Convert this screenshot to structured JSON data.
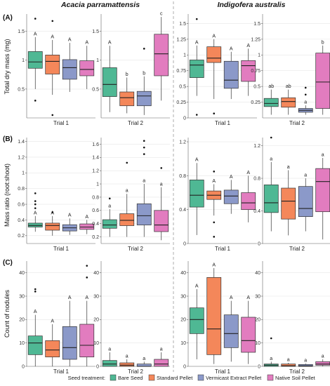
{
  "figure": {
    "species": [
      "Acacia parramattensis",
      "Indigofera australis"
    ],
    "trials": [
      "Trial 1",
      "Trial 2"
    ],
    "legend_title": "Seed treatment:",
    "treatments": [
      {
        "name": "Bare Seed",
        "color": "#4fb894"
      },
      {
        "name": "Standard Pellet",
        "color": "#f4875a"
      },
      {
        "name": "Vermicast Extract Pellet",
        "color": "#8b99c9"
      },
      {
        "name": "Native Soil Pellet",
        "color": "#e27cbf"
      }
    ]
  },
  "chart_data": [
    {
      "type": "box",
      "panel": "(A)",
      "species": "Acacia parramattensis",
      "trial": "Trial 1",
      "ylabel": "Total dry mass (mg)",
      "ylim": [
        0,
        1.8
      ],
      "ticks": [
        0.5,
        1.0,
        1.5
      ],
      "boxes": [
        {
          "treatment": "Bare Seed",
          "min": 0.5,
          "q1": 0.86,
          "median": 0.97,
          "q3": 1.15,
          "max": 1.4,
          "outliers": [
            1.72,
            0.3
          ],
          "letter": "A"
        },
        {
          "treatment": "Standard Pellet",
          "min": 0.4,
          "q1": 0.76,
          "median": 0.98,
          "q3": 1.09,
          "max": 1.35,
          "outliers": [
            1.68,
            0.05
          ],
          "letter": "A"
        },
        {
          "treatment": "Vermicast Extract Pellet",
          "min": 0.45,
          "q1": 0.67,
          "median": 0.87,
          "q3": 1.01,
          "max": 1.3,
          "outliers": [],
          "letter": "A"
        },
        {
          "treatment": "Native Soil Pellet",
          "min": 0.5,
          "q1": 0.73,
          "median": 0.84,
          "q3": 0.99,
          "max": 1.25,
          "outliers": [],
          "letter": "A"
        }
      ]
    },
    {
      "type": "box",
      "panel": "(A)",
      "species": "Acacia parramattensis",
      "trial": "Trial 2",
      "ylim": [
        0,
        1.8
      ],
      "ticks": [
        0.5,
        1.0,
        1.5
      ],
      "boxes": [
        {
          "treatment": "Bare Seed",
          "min": 0.1,
          "q1": 0.37,
          "median": 0.58,
          "q3": 0.87,
          "max": 1.25,
          "outliers": [],
          "letter": "A"
        },
        {
          "treatment": "Standard Pellet",
          "min": 0.08,
          "q1": 0.21,
          "median": 0.35,
          "q3": 0.45,
          "max": 0.7,
          "outliers": [],
          "letter": "b"
        },
        {
          "treatment": "Vermicast Extract Pellet",
          "min": 0.05,
          "q1": 0.21,
          "median": 0.38,
          "q3": 0.46,
          "max": 0.72,
          "outliers": [
            1.2
          ],
          "letter": "b"
        },
        {
          "treatment": "Native Soil Pellet",
          "min": 0.3,
          "q1": 0.73,
          "median": 1.11,
          "q3": 1.45,
          "max": 1.75,
          "outliers": [],
          "letter": "c"
        }
      ]
    },
    {
      "type": "box",
      "panel": "(A)",
      "species": "Indigofera australis",
      "trial": "Trial 1",
      "ylim": [
        0,
        1.65
      ],
      "ticks": [
        0.0,
        0.25,
        0.5,
        0.75,
        1.0,
        1.25,
        1.5
      ],
      "boxes": [
        {
          "treatment": "Bare Seed",
          "min": 0.35,
          "q1": 0.64,
          "median": 0.84,
          "q3": 0.92,
          "max": 1.15,
          "outliers": [
            1.57,
            0.05
          ],
          "letter": "A"
        },
        {
          "treatment": "Standard Pellet",
          "min": 0.3,
          "q1": 0.88,
          "median": 0.95,
          "q3": 1.13,
          "max": 1.25,
          "outliers": [
            0.07
          ],
          "letter": "A"
        },
        {
          "treatment": "Vermicast Extract Pellet",
          "min": 0.3,
          "q1": 0.47,
          "median": 0.6,
          "q3": 0.9,
          "max": 1.05,
          "outliers": [],
          "letter": "A"
        },
        {
          "treatment": "Native Soil Pellet",
          "min": 0.35,
          "q1": 0.58,
          "median": 0.83,
          "q3": 0.91,
          "max": 1.1,
          "outliers": [],
          "letter": "A"
        }
      ]
    },
    {
      "type": "box",
      "panel": "(A)",
      "species": "Indigofera australis",
      "trial": "Trial 2",
      "ylim": [
        0,
        1.65
      ],
      "ticks": [
        0.25,
        0.5,
        0.75,
        1.0,
        1.25,
        1.5
      ],
      "boxes": [
        {
          "treatment": "Bare Seed",
          "min": 0.05,
          "q1": 0.18,
          "median": 0.23,
          "q3": 0.31,
          "max": 0.45,
          "outliers": [],
          "letter": "ab"
        },
        {
          "treatment": "Standard Pellet",
          "min": 0.05,
          "q1": 0.17,
          "median": 0.26,
          "q3": 0.32,
          "max": 0.45,
          "outliers": [],
          "letter": "ab"
        },
        {
          "treatment": "Vermicast Extract Pellet",
          "min": 0.05,
          "q1": 0.09,
          "median": 0.12,
          "q3": 0.15,
          "max": 0.2,
          "outliers": [
            0.48,
            0.37
          ],
          "letter": "a"
        },
        {
          "treatment": "Native Soil Pellet",
          "min": 0.05,
          "q1": 0.15,
          "median": 0.57,
          "q3": 1.03,
          "max": 1.15,
          "outliers": [],
          "letter": "b"
        }
      ]
    },
    {
      "type": "box",
      "panel": "(B)",
      "species": "Acacia parramattensis",
      "trial": "Trial 1",
      "ylabel": "Mass ratio (root:shoot)",
      "ylim": [
        0.1,
        1.45
      ],
      "ticks": [
        0.2,
        0.4,
        0.6,
        0.8,
        1.0,
        1.2,
        1.4
      ],
      "boxes": [
        {
          "treatment": "Bare Seed",
          "min": 0.25,
          "q1": 0.31,
          "median": 0.33,
          "q3": 0.36,
          "max": 0.45,
          "outliers": [
            0.74,
            0.64,
            0.6,
            0.55
          ],
          "letter": "A"
        },
        {
          "treatment": "Standard Pellet",
          "min": 0.2,
          "q1": 0.27,
          "median": 0.33,
          "q3": 0.36,
          "max": 0.45,
          "outliers": [
            0.5
          ],
          "letter": "A"
        },
        {
          "treatment": "Vermicast Extract Pellet",
          "min": 0.21,
          "q1": 0.26,
          "median": 0.3,
          "q3": 0.34,
          "max": 0.42,
          "outliers": [],
          "letter": "A"
        },
        {
          "treatment": "Native Soil Pellet",
          "min": 0.22,
          "q1": 0.28,
          "median": 0.31,
          "q3": 0.35,
          "max": 0.4,
          "outliers": [],
          "letter": "A"
        }
      ]
    },
    {
      "type": "box",
      "panel": "(B)",
      "species": "Acacia parramattensis",
      "trial": "Trial 2",
      "ylim": [
        0.1,
        1.7
      ],
      "ticks": [
        0.2,
        0.4,
        0.6,
        0.8,
        1.0,
        1.2,
        1.4,
        1.6
      ],
      "boxes": [
        {
          "treatment": "Bare Seed",
          "min": 0.2,
          "q1": 0.33,
          "median": 0.38,
          "q3": 0.46,
          "max": 0.62,
          "outliers": [
            0.78
          ],
          "letter": "a"
        },
        {
          "treatment": "Standard Pellet",
          "min": 0.2,
          "q1": 0.37,
          "median": 0.45,
          "q3": 0.55,
          "max": 0.85,
          "outliers": [
            1.32
          ],
          "letter": "a"
        },
        {
          "treatment": "Vermicast Extract Pellet",
          "min": 0.2,
          "q1": 0.38,
          "median": 0.52,
          "q3": 0.7,
          "max": 1.0,
          "outliers": [
            1.65,
            1.55,
            1.45
          ],
          "letter": "a"
        },
        {
          "treatment": "Native Soil Pellet",
          "min": 0.15,
          "q1": 0.28,
          "median": 0.38,
          "q3": 0.6,
          "max": 0.95,
          "outliers": [
            1.24
          ],
          "letter": "a"
        }
      ]
    },
    {
      "type": "box",
      "panel": "(B)",
      "species": "Indigofera australis",
      "trial": "Trial 1",
      "ylim": [
        0.0,
        1.25
      ],
      "ticks": [
        0.0,
        0.4,
        0.8,
        1.2
      ],
      "boxes": [
        {
          "treatment": "Bare Seed",
          "min": 0.1,
          "q1": 0.43,
          "median": 0.57,
          "q3": 0.75,
          "max": 0.95,
          "outliers": [],
          "letter": "A"
        },
        {
          "treatment": "Standard Pellet",
          "min": 0.33,
          "q1": 0.52,
          "median": 0.57,
          "q3": 0.62,
          "max": 0.7,
          "outliers": [
            0.85,
            0.25,
            0.08
          ],
          "letter": "A"
        },
        {
          "treatment": "Vermicast Extract Pellet",
          "min": 0.35,
          "q1": 0.47,
          "median": 0.56,
          "q3": 0.63,
          "max": 0.75,
          "outliers": [],
          "letter": "A"
        },
        {
          "treatment": "Native Soil Pellet",
          "min": 0.25,
          "q1": 0.4,
          "median": 0.48,
          "q3": 0.6,
          "max": 0.8,
          "outliers": [],
          "letter": "A"
        }
      ]
    },
    {
      "type": "box",
      "panel": "(B)",
      "species": "Indigofera australis",
      "trial": "Trial 2",
      "ylim": [
        0.0,
        1.3
      ],
      "ticks": [
        0.0,
        0.4,
        0.8,
        1.2
      ],
      "boxes": [
        {
          "treatment": "Bare Seed",
          "min": 0.15,
          "q1": 0.38,
          "median": 0.5,
          "q3": 0.72,
          "max": 1.0,
          "outliers": [
            1.3
          ],
          "letter": "a"
        },
        {
          "treatment": "Standard Pellet",
          "min": 0.1,
          "q1": 0.3,
          "median": 0.52,
          "q3": 0.68,
          "max": 0.9,
          "outliers": [],
          "letter": "a"
        },
        {
          "treatment": "Vermicast Extract Pellet",
          "min": 0.15,
          "q1": 0.33,
          "median": 0.43,
          "q3": 0.7,
          "max": 0.8,
          "outliers": [],
          "letter": "a"
        },
        {
          "treatment": "Native Soil Pellet",
          "min": 0.05,
          "q1": 0.39,
          "median": 0.76,
          "q3": 0.92,
          "max": 1.05,
          "outliers": [],
          "letter": "a"
        }
      ]
    },
    {
      "type": "box",
      "panel": "(C)",
      "species": "Acacia parramattensis",
      "trial": "Trial 1",
      "ylabel": "Count of nodules",
      "ylim": [
        0,
        45
      ],
      "ticks": [
        0,
        10,
        20,
        30,
        40
      ],
      "boxes": [
        {
          "treatment": "Bare Seed",
          "min": 0,
          "q1": 5,
          "median": 10,
          "q3": 13,
          "max": 22,
          "outliers": [
            33,
            32
          ],
          "letter": "A"
        },
        {
          "treatment": "Standard Pellet",
          "min": 0,
          "q1": 4,
          "median": 7,
          "q3": 11,
          "max": 18,
          "outliers": [],
          "letter": "A"
        },
        {
          "treatment": "Vermicast Extract Pellet",
          "min": 0,
          "q1": 3,
          "median": 8,
          "q3": 17,
          "max": 28,
          "outliers": [],
          "letter": "A"
        },
        {
          "treatment": "Native Soil Pellet",
          "min": 0,
          "q1": 4,
          "median": 9,
          "q3": 18,
          "max": 28,
          "outliers": [
            43,
            38
          ],
          "letter": "A"
        }
      ]
    },
    {
      "type": "box",
      "panel": "(C)",
      "species": "Acacia parramattensis",
      "trial": "Trial 2",
      "ylim": [
        0,
        45
      ],
      "ticks": [
        0,
        10,
        20,
        30,
        40
      ],
      "boxes": [
        {
          "treatment": "Bare Seed",
          "min": 0,
          "q1": 0,
          "median": 1,
          "q3": 2.5,
          "max": 6,
          "outliers": [],
          "letter": "a"
        },
        {
          "treatment": "Standard Pellet",
          "min": 0,
          "q1": 0,
          "median": 0.5,
          "q3": 1.5,
          "max": 3,
          "outliers": [],
          "letter": "a"
        },
        {
          "treatment": "Vermicast Extract Pellet",
          "min": 0,
          "q1": 0,
          "median": 0,
          "q3": 1,
          "max": 2,
          "outliers": [],
          "letter": "a"
        },
        {
          "treatment": "Native Soil Pellet",
          "min": 0,
          "q1": 0,
          "median": 1,
          "q3": 3,
          "max": 6,
          "outliers": [],
          "letter": "a"
        }
      ]
    },
    {
      "type": "box",
      "panel": "(C)",
      "species": "Indigofera australis",
      "trial": "Trial 1",
      "ylim": [
        0,
        45
      ],
      "ticks": [
        0,
        10,
        20,
        30,
        40
      ],
      "boxes": [
        {
          "treatment": "Bare Seed",
          "min": 3,
          "q1": 14,
          "median": 20,
          "q3": 25,
          "max": 33,
          "outliers": [],
          "letter": "A"
        },
        {
          "treatment": "Standard Pellet",
          "min": 1,
          "q1": 5,
          "median": 16,
          "q3": 38,
          "max": 42,
          "outliers": [],
          "letter": "A"
        },
        {
          "treatment": "Vermicast Extract Pellet",
          "min": 2,
          "q1": 8,
          "median": 14,
          "q3": 22,
          "max": 28,
          "outliers": [],
          "letter": "A"
        },
        {
          "treatment": "Native Soil Pellet",
          "min": 1,
          "q1": 6,
          "median": 11,
          "q3": 21,
          "max": 28,
          "outliers": [],
          "letter": "A"
        }
      ]
    },
    {
      "type": "box",
      "panel": "(C)",
      "species": "Indigofera australis",
      "trial": "Trial 2",
      "ylim": [
        0,
        45
      ],
      "ticks": [
        0,
        10,
        20,
        30,
        40
      ],
      "boxes": [
        {
          "treatment": "Bare Seed",
          "min": 0,
          "q1": 0,
          "median": 0.5,
          "q3": 1,
          "max": 2,
          "outliers": [
            12
          ],
          "letter": "a"
        },
        {
          "treatment": "Standard Pellet",
          "min": 0,
          "q1": 0,
          "median": 0.3,
          "q3": 1,
          "max": 1.5,
          "outliers": [],
          "letter": "a"
        },
        {
          "treatment": "Vermicast Extract Pellet",
          "min": 0,
          "q1": 0,
          "median": 0.2,
          "q3": 0.8,
          "max": 1.2,
          "outliers": [],
          "letter": "a"
        },
        {
          "treatment": "Native Soil Pellet",
          "min": 0,
          "q1": 0.5,
          "median": 1,
          "q3": 2,
          "max": 3,
          "outliers": [],
          "letter": "a"
        }
      ]
    }
  ]
}
